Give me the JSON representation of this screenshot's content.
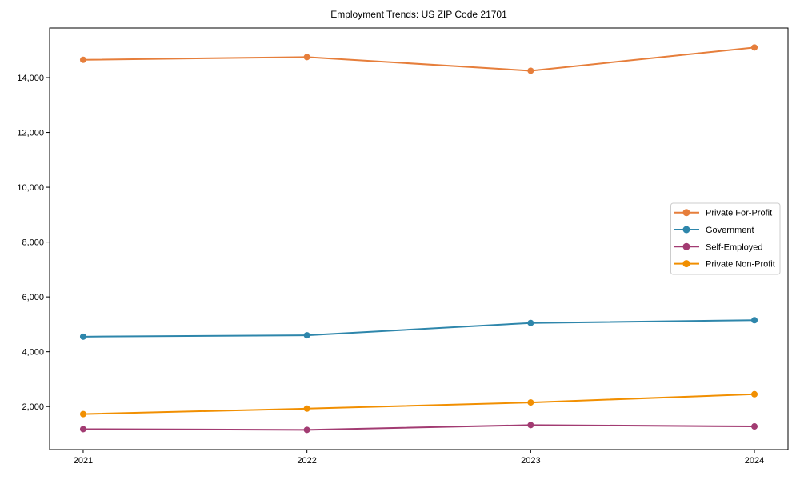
{
  "figure": {
    "background": "#ffffff"
  },
  "chart_data": {
    "type": "line",
    "title": "Employment Trends: US ZIP Code 21701",
    "categories": [
      2021,
      2022,
      2023,
      2024
    ],
    "x_tick_labels": [
      "2021",
      "2022",
      "2023",
      "2024"
    ],
    "y_tick_values": [
      2000,
      4000,
      6000,
      8000,
      10000,
      12000,
      14000
    ],
    "y_tick_labels": [
      "2,000",
      "4,000",
      "6,000",
      "8,000",
      "10,000",
      "12,000",
      "14,000"
    ],
    "xlim": [
      2020.85,
      2024.15
    ],
    "ylim": [
      430,
      15810
    ],
    "grid": false,
    "legend_position": "center-right",
    "series": [
      {
        "name": "Private For-Profit",
        "color": "#E67E3B",
        "values": [
          14650,
          14750,
          14250,
          15100
        ]
      },
      {
        "name": "Government",
        "color": "#2E86AB",
        "values": [
          4550,
          4600,
          5050,
          5150
        ]
      },
      {
        "name": "Self-Employed",
        "color": "#A23B72",
        "values": [
          1175,
          1150,
          1325,
          1275
        ]
      },
      {
        "name": "Private Non-Profit",
        "color": "#F18F01",
        "values": [
          1725,
          1925,
          2150,
          2450
        ]
      }
    ],
    "style": {
      "line_width": 2,
      "marker": "circle",
      "marker_radius": 4,
      "axis_color": "#000000",
      "tick_label_color": "#000000",
      "legend_border_color": "#cccccc",
      "legend_background": "#ffffff"
    }
  }
}
